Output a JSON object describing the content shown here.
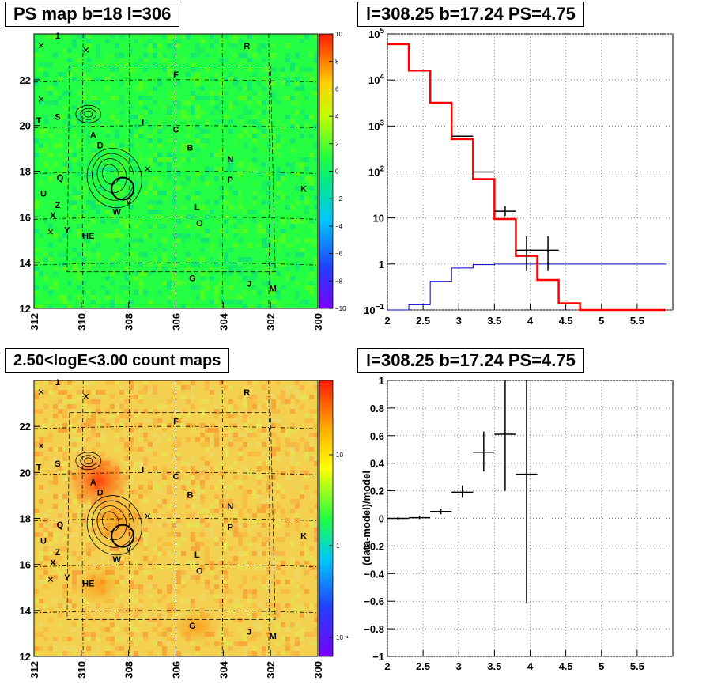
{
  "titles": {
    "map_top": "PS map b=18 l=306",
    "spec_top": "l=308.25 b=17.24 PS=4.75",
    "map_bottom": "2.50<logE<3.00 count maps",
    "resid_bottom": "l=308.25 b=17.24 PS=4.75"
  },
  "map_axes": {
    "x_ticks": [
      "312",
      "310",
      "308",
      "306",
      "304",
      "302",
      "300"
    ],
    "y_ticks": [
      "12",
      "14",
      "16",
      "18",
      "20",
      "22"
    ],
    "xlim": [
      312,
      300
    ],
    "ylim": [
      12,
      24
    ]
  },
  "colorbar_top": {
    "ticks": [
      "10",
      "8",
      "6",
      "4",
      "2",
      "0",
      "−2",
      "−4",
      "−6",
      "−8",
      "−10"
    ],
    "range": [
      -10,
      10
    ]
  },
  "colorbar_bottom": {
    "ticks": [
      "10",
      "1",
      "10⁻¹"
    ],
    "scale": "log"
  },
  "source_labels": [
    {
      "text": "1",
      "l": 311.0,
      "b": 23.8
    },
    {
      "text": "R",
      "l": 303.0,
      "b": 23.35
    },
    {
      "text": "F",
      "l": 306.0,
      "b": 22.1
    },
    {
      "text": "T",
      "l": 311.8,
      "b": 20.1
    },
    {
      "text": "S",
      "l": 311.0,
      "b": 20.25
    },
    {
      "text": "I",
      "l": 307.4,
      "b": 20.0
    },
    {
      "text": "C",
      "l": 306.0,
      "b": 19.7
    },
    {
      "text": "A",
      "l": 309.5,
      "b": 19.45
    },
    {
      "text": "D",
      "l": 309.2,
      "b": 19.0
    },
    {
      "text": "B",
      "l": 305.4,
      "b": 18.9
    },
    {
      "text": "N",
      "l": 303.7,
      "b": 18.4
    },
    {
      "text": "Q",
      "l": 310.9,
      "b": 17.6
    },
    {
      "text": "P",
      "l": 303.7,
      "b": 17.5
    },
    {
      "text": "K",
      "l": 300.6,
      "b": 17.1
    },
    {
      "text": "U",
      "l": 311.6,
      "b": 16.9
    },
    {
      "text": "Z",
      "l": 311.0,
      "b": 16.4
    },
    {
      "text": "V",
      "l": 308.0,
      "b": 16.55
    },
    {
      "text": "L",
      "l": 305.1,
      "b": 16.3
    },
    {
      "text": "W",
      "l": 308.5,
      "b": 16.1
    },
    {
      "text": "X",
      "l": 311.2,
      "b": 15.95
    },
    {
      "text": "O",
      "l": 305.0,
      "b": 15.6
    },
    {
      "text": "Y",
      "l": 310.6,
      "b": 15.3
    },
    {
      "text": "HE",
      "l": 309.7,
      "b": 15.05
    },
    {
      "text": "G",
      "l": 305.3,
      "b": 13.2
    },
    {
      "text": "J",
      "l": 302.9,
      "b": 12.95
    },
    {
      "text": "M",
      "l": 301.9,
      "b": 12.75
    }
  ],
  "source_crosses": [
    {
      "l": 311.7,
      "b": 23.5
    },
    {
      "l": 309.8,
      "b": 23.3
    },
    {
      "l": 311.7,
      "b": 21.15
    },
    {
      "l": 307.2,
      "b": 18.1
    },
    {
      "l": 311.3,
      "b": 15.35
    }
  ],
  "chart_data": [
    {
      "type": "step",
      "panel": "spectrum",
      "title": "l=308.25 b=17.24 PS=4.75",
      "xlabel": "",
      "ylabel": "",
      "xlim": [
        2,
        6
      ],
      "ylim": [
        0.1,
        100000
      ],
      "yscale": "log",
      "grid": true,
      "x_ticks": [
        "2",
        "2.5",
        "3",
        "3.5",
        "4",
        "4.5",
        "5",
        "5.5"
      ],
      "y_ticks": [
        {
          "v": 100000,
          "base": "10",
          "exp": "5"
        },
        {
          "v": 10000,
          "base": "10",
          "exp": "4"
        },
        {
          "v": 1000,
          "base": "10",
          "exp": "3"
        },
        {
          "v": 100,
          "base": "10",
          "exp": "2"
        },
        {
          "v": 10,
          "base": "10",
          "exp": ""
        },
        {
          "v": 1,
          "base": "1",
          "exp": ""
        },
        {
          "v": 0.1,
          "base": "10",
          "exp": "−1"
        }
      ],
      "bin_edges": [
        2.0,
        2.3,
        2.6,
        2.9,
        3.2,
        3.5,
        3.8,
        4.1,
        4.4,
        4.7,
        5.0,
        5.3,
        5.6,
        5.9
      ],
      "model_total": [
        60000,
        16000,
        3200,
        520,
        70,
        9.5,
        1.5,
        0.45,
        0.14,
        0.1,
        0.1,
        0.1,
        0.1
      ],
      "model_ps": [
        0.1,
        0.13,
        0.42,
        0.82,
        0.97,
        1.0,
        1.0,
        1.0,
        1.0,
        1.0,
        1.0,
        1.0,
        1.0
      ],
      "data": [
        {
          "x": 3.05,
          "xerr": 0.15,
          "y": 600,
          "ylo": 600,
          "yhi": 600
        },
        {
          "x": 3.35,
          "xerr": 0.15,
          "y": 100,
          "ylo": 100,
          "yhi": 100
        },
        {
          "x": 3.65,
          "xerr": 0.15,
          "y": 14,
          "ylo": 11,
          "yhi": 18
        },
        {
          "x": 3.95,
          "xerr": 0.15,
          "y": 2,
          "ylo": 0.7,
          "yhi": 4
        },
        {
          "x": 4.25,
          "xerr": 0.15,
          "y": 2,
          "ylo": 0.7,
          "yhi": 4
        }
      ],
      "colors": {
        "total": "#ff0000",
        "ps": "#0000cc",
        "data": "#000000"
      }
    },
    {
      "type": "scatter",
      "panel": "residual",
      "title": "l=308.25 b=17.24 PS=4.75",
      "ylabel": "(data-model)/model",
      "xlim": [
        2,
        6
      ],
      "ylim": [
        -1,
        1
      ],
      "grid": true,
      "x_ticks": [
        "2",
        "2.5",
        "3",
        "3.5",
        "4",
        "4.5",
        "5",
        "5.5"
      ],
      "y_ticks": [
        {
          "v": 1,
          "t": "1"
        },
        {
          "v": 0.8,
          "t": "0.8"
        },
        {
          "v": 0.6,
          "t": "0.6"
        },
        {
          "v": 0.4,
          "t": "0.4"
        },
        {
          "v": 0.2,
          "t": "0.2"
        },
        {
          "v": 0,
          "t": "0"
        },
        {
          "v": -0.2,
          "t": "−0.2"
        },
        {
          "v": -0.4,
          "t": "−0.4"
        },
        {
          "v": -0.6,
          "t": "−0.6"
        },
        {
          "v": -0.8,
          "t": "−0.8"
        },
        {
          "v": -1,
          "t": "−1"
        }
      ],
      "data": [
        {
          "x": 2.15,
          "xerr": 0.15,
          "y": 0.0,
          "ylo": -0.01,
          "yhi": 0.01
        },
        {
          "x": 2.45,
          "xerr": 0.15,
          "y": 0.005,
          "ylo": -0.005,
          "yhi": 0.015
        },
        {
          "x": 2.75,
          "xerr": 0.15,
          "y": 0.05,
          "ylo": 0.03,
          "yhi": 0.07
        },
        {
          "x": 3.05,
          "xerr": 0.15,
          "y": 0.19,
          "ylo": 0.15,
          "yhi": 0.24
        },
        {
          "x": 3.35,
          "xerr": 0.15,
          "y": 0.48,
          "ylo": 0.34,
          "yhi": 0.63
        },
        {
          "x": 3.65,
          "xerr": 0.15,
          "y": 0.61,
          "ylo": 0.2,
          "yhi": 1.0
        },
        {
          "x": 3.95,
          "xerr": 0.15,
          "y": 0.32,
          "ylo": -0.61,
          "yhi": 1.0
        }
      ]
    }
  ]
}
